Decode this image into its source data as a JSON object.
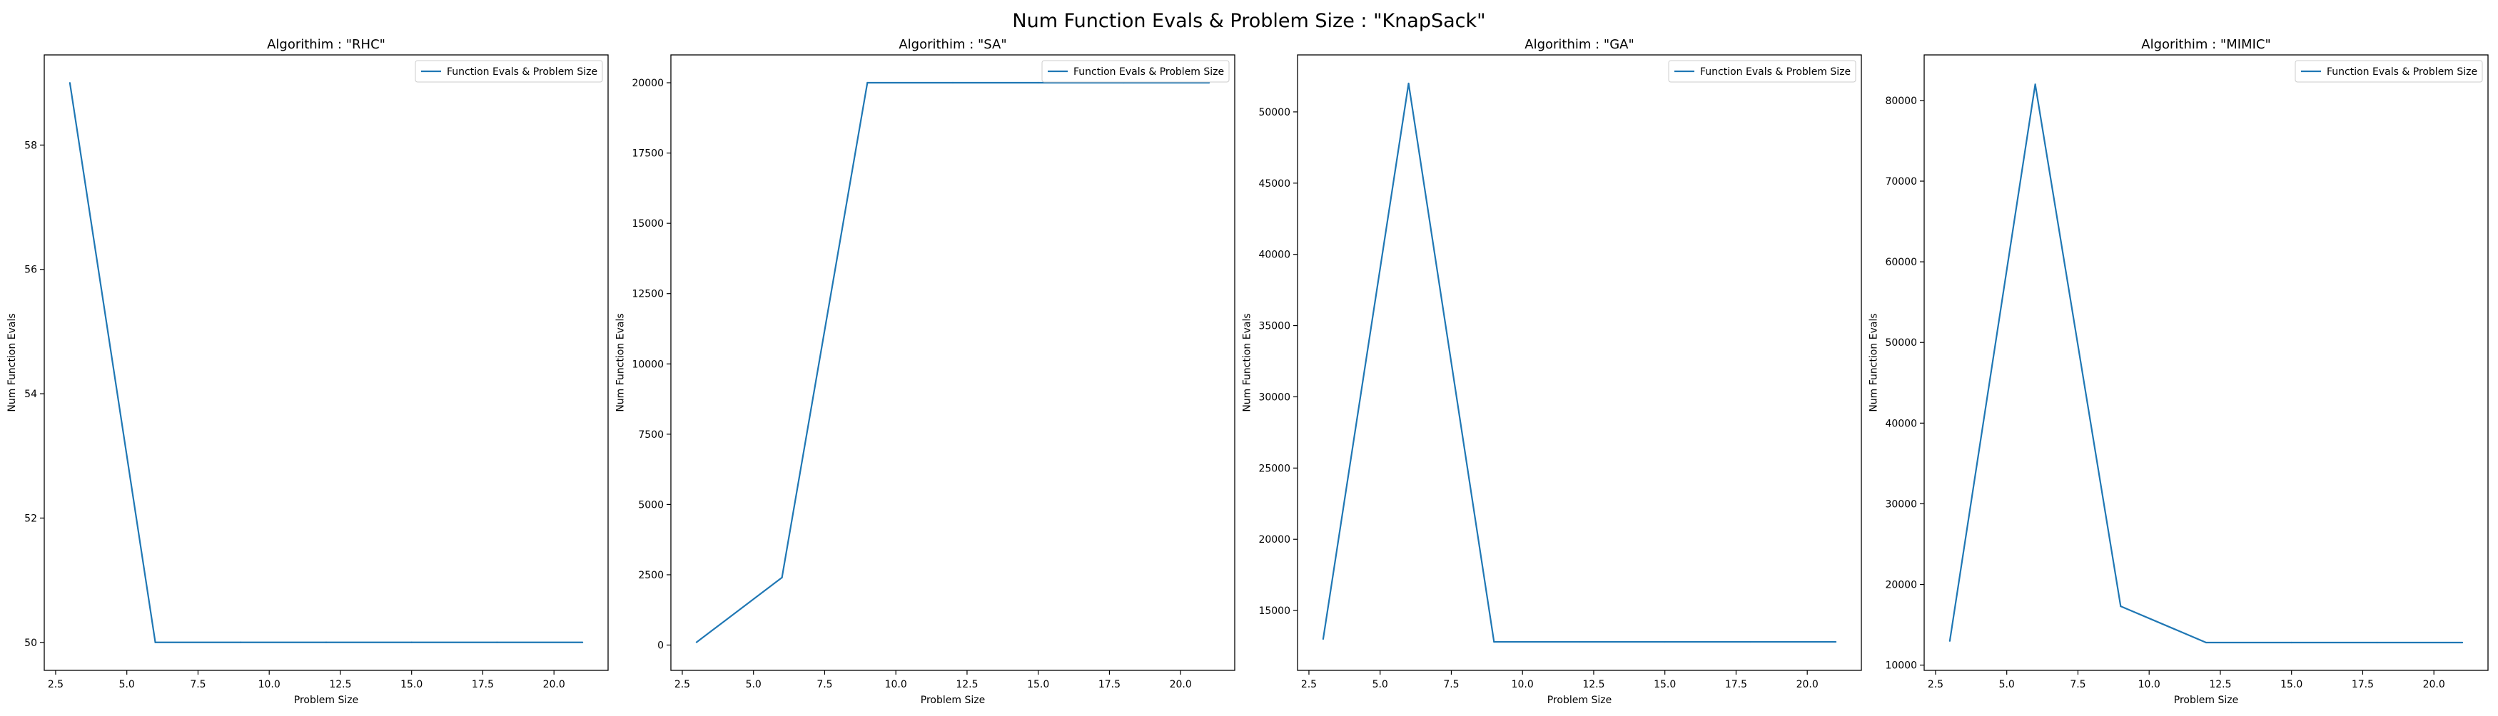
{
  "figure": {
    "title": "Num Function Evals & Problem Size : \"KnapSack\""
  },
  "colors": {
    "series": "#1f77b4",
    "axis": "#000000",
    "legend_border": "#cccccc"
  },
  "chart_data": [
    {
      "type": "line",
      "title": "Algorithim : \"RHC\"",
      "xlabel": "Problem Size",
      "ylabel": "Num Function Evals",
      "xlim": [
        2.1,
        21.9
      ],
      "ylim": [
        49.55,
        59.45
      ],
      "xticks": [
        2.5,
        5.0,
        7.5,
        10.0,
        12.5,
        15.0,
        17.5,
        20.0
      ],
      "xtick_labels": [
        "2.5",
        "5.0",
        "7.5",
        "10.0",
        "12.5",
        "15.0",
        "17.5",
        "20.0"
      ],
      "yticks": [
        50,
        52,
        54,
        56,
        58
      ],
      "ytick_labels": [
        "50",
        "52",
        "54",
        "56",
        "58"
      ],
      "grid": false,
      "legend": "top-right",
      "series": [
        {
          "name": "Function Evals & Problem Size",
          "x": [
            3,
            6,
            9,
            12,
            15,
            18,
            21
          ],
          "y": [
            59,
            50,
            50,
            50,
            50,
            50,
            50
          ]
        }
      ]
    },
    {
      "type": "line",
      "title": "Algorithim : \"SA\"",
      "xlabel": "Problem Size",
      "ylabel": "Num Function Evals",
      "xlim": [
        2.1,
        21.9
      ],
      "ylim": [
        -900,
        20990
      ],
      "xticks": [
        2.5,
        5.0,
        7.5,
        10.0,
        12.5,
        15.0,
        17.5,
        20.0
      ],
      "xtick_labels": [
        "2.5",
        "5.0",
        "7.5",
        "10.0",
        "12.5",
        "15.0",
        "17.5",
        "20.0"
      ],
      "yticks": [
        0,
        2500,
        5000,
        7500,
        10000,
        12500,
        15000,
        17500,
        20000
      ],
      "ytick_labels": [
        "0",
        "2500",
        "5000",
        "7500",
        "10000",
        "12500",
        "15000",
        "17500",
        "20000"
      ],
      "grid": false,
      "legend": "top-right",
      "series": [
        {
          "name": "Function Evals & Problem Size",
          "x": [
            3,
            6,
            9,
            12,
            15,
            18,
            21
          ],
          "y": [
            100,
            2400,
            20000,
            20000,
            20000,
            20000,
            20000
          ]
        }
      ]
    },
    {
      "type": "line",
      "title": "Algorithim : \"GA\"",
      "xlabel": "Problem Size",
      "ylabel": "Num Function Evals",
      "xlim": [
        2.1,
        21.9
      ],
      "ylim": [
        10800,
        54000
      ],
      "xticks": [
        2.5,
        5.0,
        7.5,
        10.0,
        12.5,
        15.0,
        17.5,
        20.0
      ],
      "xtick_labels": [
        "2.5",
        "5.0",
        "7.5",
        "10.0",
        "12.5",
        "15.0",
        "17.5",
        "20.0"
      ],
      "yticks": [
        15000,
        20000,
        25000,
        30000,
        35000,
        40000,
        45000,
        50000
      ],
      "ytick_labels": [
        "15000",
        "20000",
        "25000",
        "30000",
        "35000",
        "40000",
        "45000",
        "50000"
      ],
      "grid": false,
      "legend": "top-right",
      "series": [
        {
          "name": "Function Evals & Problem Size",
          "x": [
            3,
            6,
            9,
            12,
            15,
            18,
            21
          ],
          "y": [
            13000,
            52000,
            12800,
            12800,
            12800,
            12800,
            12800
          ]
        }
      ]
    },
    {
      "type": "line",
      "title": "Algorithim : \"MIMIC\"",
      "xlabel": "Problem Size",
      "ylabel": "Num Function Evals",
      "xlim": [
        2.1,
        21.9
      ],
      "ylim": [
        9350,
        85650
      ],
      "xticks": [
        2.5,
        5.0,
        7.5,
        10.0,
        12.5,
        15.0,
        17.5,
        20.0
      ],
      "xtick_labels": [
        "2.5",
        "5.0",
        "7.5",
        "10.0",
        "12.5",
        "15.0",
        "17.5",
        "20.0"
      ],
      "yticks": [
        10000,
        20000,
        30000,
        40000,
        50000,
        60000,
        70000,
        80000
      ],
      "ytick_labels": [
        "10000",
        "20000",
        "30000",
        "40000",
        "50000",
        "60000",
        "70000",
        "80000"
      ],
      "grid": false,
      "legend": "top-right",
      "series": [
        {
          "name": "Function Evals & Problem Size",
          "x": [
            3,
            6,
            9,
            12,
            15,
            18,
            21
          ],
          "y": [
            13000,
            82000,
            17300,
            12800,
            12800,
            12800,
            12800
          ]
        }
      ]
    }
  ]
}
